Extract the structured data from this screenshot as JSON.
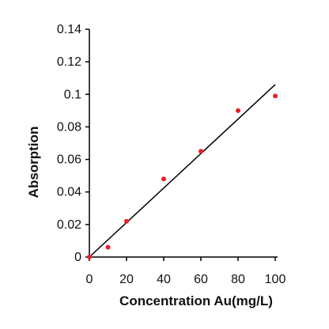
{
  "chart_data": {
    "type": "scatter",
    "title": "",
    "xlabel": "Concentration Au(mg/L)",
    "ylabel": "Absorption",
    "xlim": [
      0,
      100
    ],
    "ylim": [
      0,
      0.14
    ],
    "x_ticks": [
      0,
      20,
      40,
      60,
      80,
      100
    ],
    "x_tick_labels": [
      "0",
      "20",
      "40",
      "60",
      "80",
      "100"
    ],
    "y_ticks": [
      0,
      0.02,
      0.04,
      0.06,
      0.08,
      0.1,
      0.12,
      0.14
    ],
    "y_tick_labels": [
      "0",
      "0.02",
      "0.04",
      "0.06",
      "0.08",
      "0.1",
      "0.12",
      "0.14"
    ],
    "grid": false,
    "legend": "none",
    "series": [
      {
        "x": [
          0,
          10,
          20,
          40,
          60,
          80,
          100
        ],
        "y": [
          0,
          0.006,
          0.022,
          0.048,
          0.065,
          0.09,
          0.099
        ],
        "color": "#e8202a"
      }
    ],
    "fit_line": {
      "x": [
        0,
        100
      ],
      "y": [
        0,
        0.106
      ],
      "color": "#000000"
    }
  }
}
